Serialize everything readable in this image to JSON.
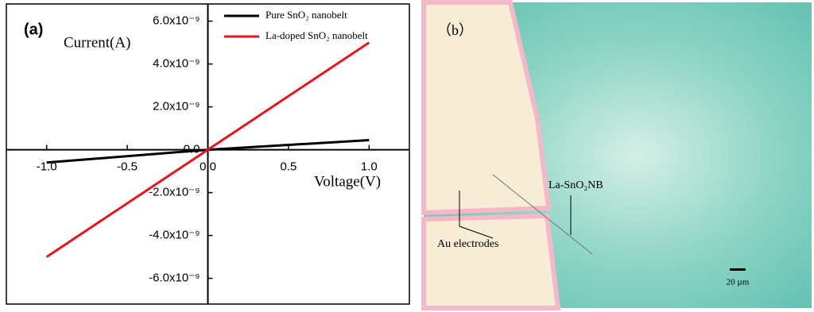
{
  "chart_data": {
    "type": "line",
    "panel_label": "(a)",
    "x_label": "Voltage(V)",
    "y_label": "Current(A)",
    "x": [
      -1,
      0,
      1
    ],
    "series": [
      {
        "name": "Pure SnO₂ nanobelt",
        "color": "#000000",
        "values": [
          -6e-10,
          0,
          4.5e-10
        ]
      },
      {
        "name": "La-doped SnO₂ nanobelt",
        "color": "#e8141c",
        "values": [
          -5e-09,
          0,
          5e-09
        ]
      }
    ],
    "xlim": [
      -1.25,
      1.25
    ],
    "ylim": [
      -7.2e-09,
      6.8e-09
    ],
    "xticks": [
      {
        "value": -1,
        "label": "-1.0"
      },
      {
        "value": -0.5,
        "label": "-0.5"
      },
      {
        "value": 0,
        "label": "0.0"
      },
      {
        "value": 0.5,
        "label": "0.5"
      },
      {
        "value": 1,
        "label": "1.0"
      }
    ],
    "yticks": [
      {
        "value": -6e-09,
        "label": "-6.0x10⁻⁹"
      },
      {
        "value": -4e-09,
        "label": "-4.0x10⁻⁹"
      },
      {
        "value": -2e-09,
        "label": "-2.0x10⁻⁹"
      },
      {
        "value": 0,
        "label": "0.0"
      },
      {
        "value": 2e-09,
        "label": "2.0x10⁻⁹"
      },
      {
        "value": 4e-09,
        "label": "4.0x10⁻⁹"
      },
      {
        "value": 6e-09,
        "label": "6.0x10⁻⁹"
      }
    ],
    "legend": "top-right"
  },
  "micrograph": {
    "panel_label": "（b）",
    "nanobelt_label": "La-SnO₂NB",
    "electrode_label": "Au electrodes",
    "scale_label": "20 µm"
  }
}
